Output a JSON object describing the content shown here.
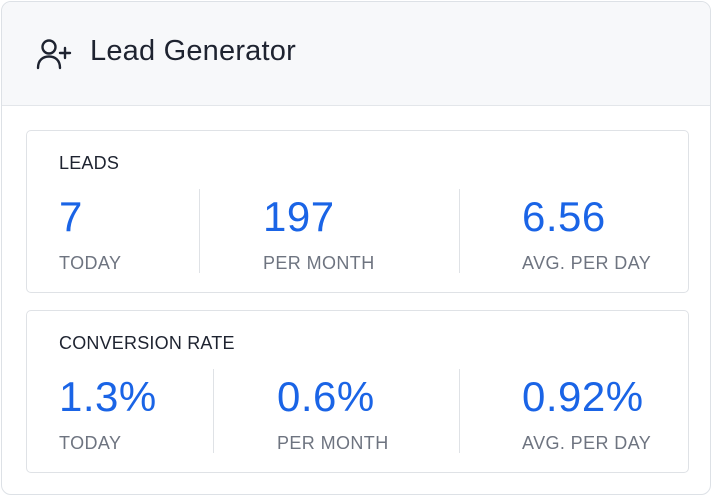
{
  "header": {
    "title": "Lead Generator",
    "icon": "user-plus-icon"
  },
  "leads": {
    "title": "LEADS",
    "metrics": [
      {
        "value": "7",
        "label": "TODAY"
      },
      {
        "value": "197",
        "label": "PER MONTH"
      },
      {
        "value": "6.56",
        "label": "AVG. PER DAY"
      }
    ]
  },
  "conversion": {
    "title": "CONVERSION RATE",
    "metrics": [
      {
        "value": "1.3%",
        "label": "TODAY"
      },
      {
        "value": "0.6%",
        "label": "PER MONTH"
      },
      {
        "value": "0.92%",
        "label": "AVG. PER DAY"
      }
    ]
  },
  "colors": {
    "value": "#1a64e6",
    "label": "#6e7480",
    "title": "#1e2330"
  }
}
